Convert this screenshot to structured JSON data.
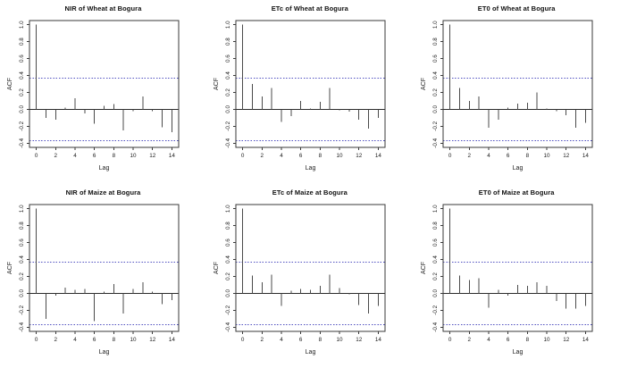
{
  "figure": {
    "description": "Grid of six autocorrelation function (ACF) plots",
    "rows": 2,
    "cols": 3
  },
  "colors": {
    "background": "#ffffff",
    "stem": "#4a4a4a",
    "zero_line": "#2b2b2b",
    "box": "#3a3a3a",
    "conf_line": "#5050c0",
    "text": "#1a1a1a"
  },
  "chart_data": [
    {
      "type": "bar",
      "style": "acf-stem",
      "title": "NIR of Wheat at Bogura",
      "xlabel": "Lag",
      "ylabel": "ACF",
      "x": [
        0,
        1,
        2,
        3,
        4,
        5,
        6,
        7,
        8,
        9,
        10,
        11,
        12,
        13,
        14
      ],
      "values": [
        1.0,
        -0.1,
        -0.12,
        0.02,
        0.13,
        -0.05,
        -0.17,
        0.04,
        0.06,
        -0.25,
        -0.02,
        0.15,
        -0.02,
        -0.21,
        -0.27
      ],
      "conf_band": 0.37,
      "xlim": [
        -0.7,
        14.7
      ],
      "ylim": [
        -0.45,
        1.05
      ],
      "yticks": [
        1.0,
        0.8,
        0.6,
        0.4,
        0.2,
        0.0,
        -0.2,
        -0.4
      ],
      "xticks": [
        0,
        2,
        4,
        6,
        8,
        10,
        12,
        14
      ],
      "grid": false,
      "legend": "none"
    },
    {
      "type": "bar",
      "style": "acf-stem",
      "title": "ETc of Wheat at Bogura",
      "xlabel": "Lag",
      "ylabel": "ACF",
      "x": [
        0,
        1,
        2,
        3,
        4,
        5,
        6,
        7,
        8,
        9,
        10,
        11,
        12,
        13,
        14
      ],
      "values": [
        1.0,
        0.3,
        0.15,
        0.25,
        -0.15,
        -0.08,
        0.1,
        0.01,
        0.09,
        0.25,
        -0.01,
        -0.03,
        -0.12,
        -0.23,
        -0.1
      ],
      "conf_band": 0.37,
      "xlim": [
        -0.7,
        14.7
      ],
      "ylim": [
        -0.45,
        1.05
      ],
      "yticks": [
        1.0,
        0.8,
        0.6,
        0.4,
        0.2,
        0.0,
        -0.2,
        -0.4
      ],
      "xticks": [
        0,
        2,
        4,
        6,
        8,
        10,
        12,
        14
      ],
      "grid": false,
      "legend": "none"
    },
    {
      "type": "bar",
      "style": "acf-stem",
      "title": "ET0 of Wheat at Bogura",
      "xlabel": "Lag",
      "ylabel": "ACF",
      "x": [
        0,
        1,
        2,
        3,
        4,
        5,
        6,
        7,
        8,
        9,
        10,
        11,
        12,
        13,
        14
      ],
      "values": [
        1.0,
        0.25,
        0.1,
        0.15,
        -0.22,
        -0.12,
        0.02,
        0.07,
        0.08,
        0.2,
        0.01,
        -0.02,
        -0.07,
        -0.22,
        -0.16
      ],
      "conf_band": 0.37,
      "xlim": [
        -0.7,
        14.7
      ],
      "ylim": [
        -0.45,
        1.05
      ],
      "yticks": [
        1.0,
        0.8,
        0.6,
        0.4,
        0.2,
        0.0,
        -0.2,
        -0.4
      ],
      "xticks": [
        0,
        2,
        4,
        6,
        8,
        10,
        12,
        14
      ],
      "grid": false,
      "legend": "none"
    },
    {
      "type": "bar",
      "style": "acf-stem",
      "title": "NIR of Maize at Bogura",
      "xlabel": "Lag",
      "ylabel": "ACF",
      "x": [
        0,
        1,
        2,
        3,
        4,
        5,
        6,
        7,
        8,
        9,
        10,
        11,
        12,
        13,
        14
      ],
      "values": [
        1.0,
        -0.3,
        -0.03,
        0.07,
        0.04,
        0.05,
        -0.33,
        0.02,
        0.11,
        -0.24,
        0.05,
        0.13,
        0.02,
        -0.13,
        -0.08
      ],
      "conf_band": 0.37,
      "xlim": [
        -0.7,
        14.7
      ],
      "ylim": [
        -0.45,
        1.05
      ],
      "yticks": [
        1.0,
        0.8,
        0.6,
        0.4,
        0.2,
        0.0,
        -0.2,
        -0.4
      ],
      "xticks": [
        0,
        2,
        4,
        6,
        8,
        10,
        12,
        14
      ],
      "grid": false,
      "legend": "none"
    },
    {
      "type": "bar",
      "style": "acf-stem",
      "title": "ETc of Maize at Bogura",
      "xlabel": "Lag",
      "ylabel": "ACF",
      "x": [
        0,
        1,
        2,
        3,
        4,
        5,
        6,
        7,
        8,
        9,
        10,
        11,
        12,
        13,
        14
      ],
      "values": [
        1.0,
        0.21,
        0.13,
        0.22,
        -0.15,
        0.03,
        0.05,
        0.04,
        0.09,
        0.22,
        0.06,
        -0.01,
        -0.14,
        -0.24,
        -0.15
      ],
      "conf_band": 0.37,
      "xlim": [
        -0.7,
        14.7
      ],
      "ylim": [
        -0.45,
        1.05
      ],
      "yticks": [
        1.0,
        0.8,
        0.6,
        0.4,
        0.2,
        0.0,
        -0.2,
        -0.4
      ],
      "xticks": [
        0,
        2,
        4,
        6,
        8,
        10,
        12,
        14
      ],
      "grid": false,
      "legend": "none"
    },
    {
      "type": "bar",
      "style": "acf-stem",
      "title": "ET0 of Maize at Bogura",
      "xlabel": "Lag",
      "ylabel": "ACF",
      "x": [
        0,
        1,
        2,
        3,
        4,
        5,
        6,
        7,
        8,
        9,
        10,
        11,
        12,
        13,
        14
      ],
      "values": [
        1.0,
        0.21,
        0.16,
        0.18,
        -0.17,
        0.04,
        -0.03,
        0.1,
        0.09,
        0.13,
        0.09,
        -0.09,
        -0.18,
        -0.18,
        -0.15
      ],
      "conf_band": 0.37,
      "xlim": [
        -0.7,
        14.7
      ],
      "ylim": [
        -0.45,
        1.05
      ],
      "yticks": [
        1.0,
        0.8,
        0.6,
        0.4,
        0.2,
        0.0,
        -0.2,
        -0.4
      ],
      "xticks": [
        0,
        2,
        4,
        6,
        8,
        10,
        12,
        14
      ],
      "grid": false,
      "legend": "none"
    }
  ]
}
